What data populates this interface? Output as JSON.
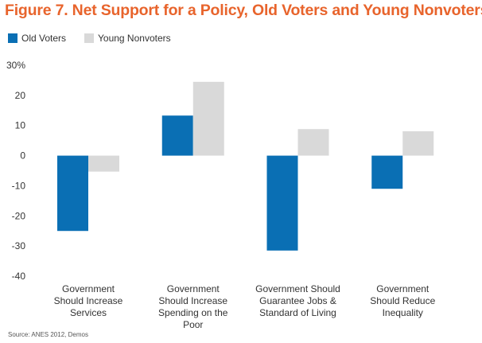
{
  "title": "Figure 7. Net Support for a Policy, Old Voters and Young Nonvoters",
  "source": "Source: ANES 2012, Demos",
  "chart_data": {
    "type": "bar",
    "title": "Figure 7. Net Support for a Policy, Old Voters and Young Nonvoters",
    "xlabel": "",
    "ylabel": "",
    "ylim": [
      -40,
      30
    ],
    "yticks": [
      30,
      20,
      10,
      0,
      -10,
      -20,
      -30,
      -40
    ],
    "ytick_labels": [
      "30%",
      "20",
      "10",
      "0",
      "-10",
      "-20",
      "-30",
      "-40"
    ],
    "grid": false,
    "legend_position": "top-left",
    "categories": [
      [
        "Government",
        "Should Increase",
        "Services"
      ],
      [
        "Government",
        "Should Increase",
        "Spending on the",
        "Poor"
      ],
      [
        "Government Should",
        "Guarantee Jobs &",
        "Standard of Living"
      ],
      [
        "Government",
        "Should Reduce",
        "Inequality"
      ]
    ],
    "series": [
      {
        "name": "Old Voters",
        "color": "#0a6fb4",
        "values": [
          -25,
          13.3,
          -31.5,
          -11
        ]
      },
      {
        "name": "Young Nonvoters",
        "color": "#d9d9d9",
        "values": [
          -5.3,
          24.5,
          8.8,
          8.1
        ]
      }
    ]
  }
}
